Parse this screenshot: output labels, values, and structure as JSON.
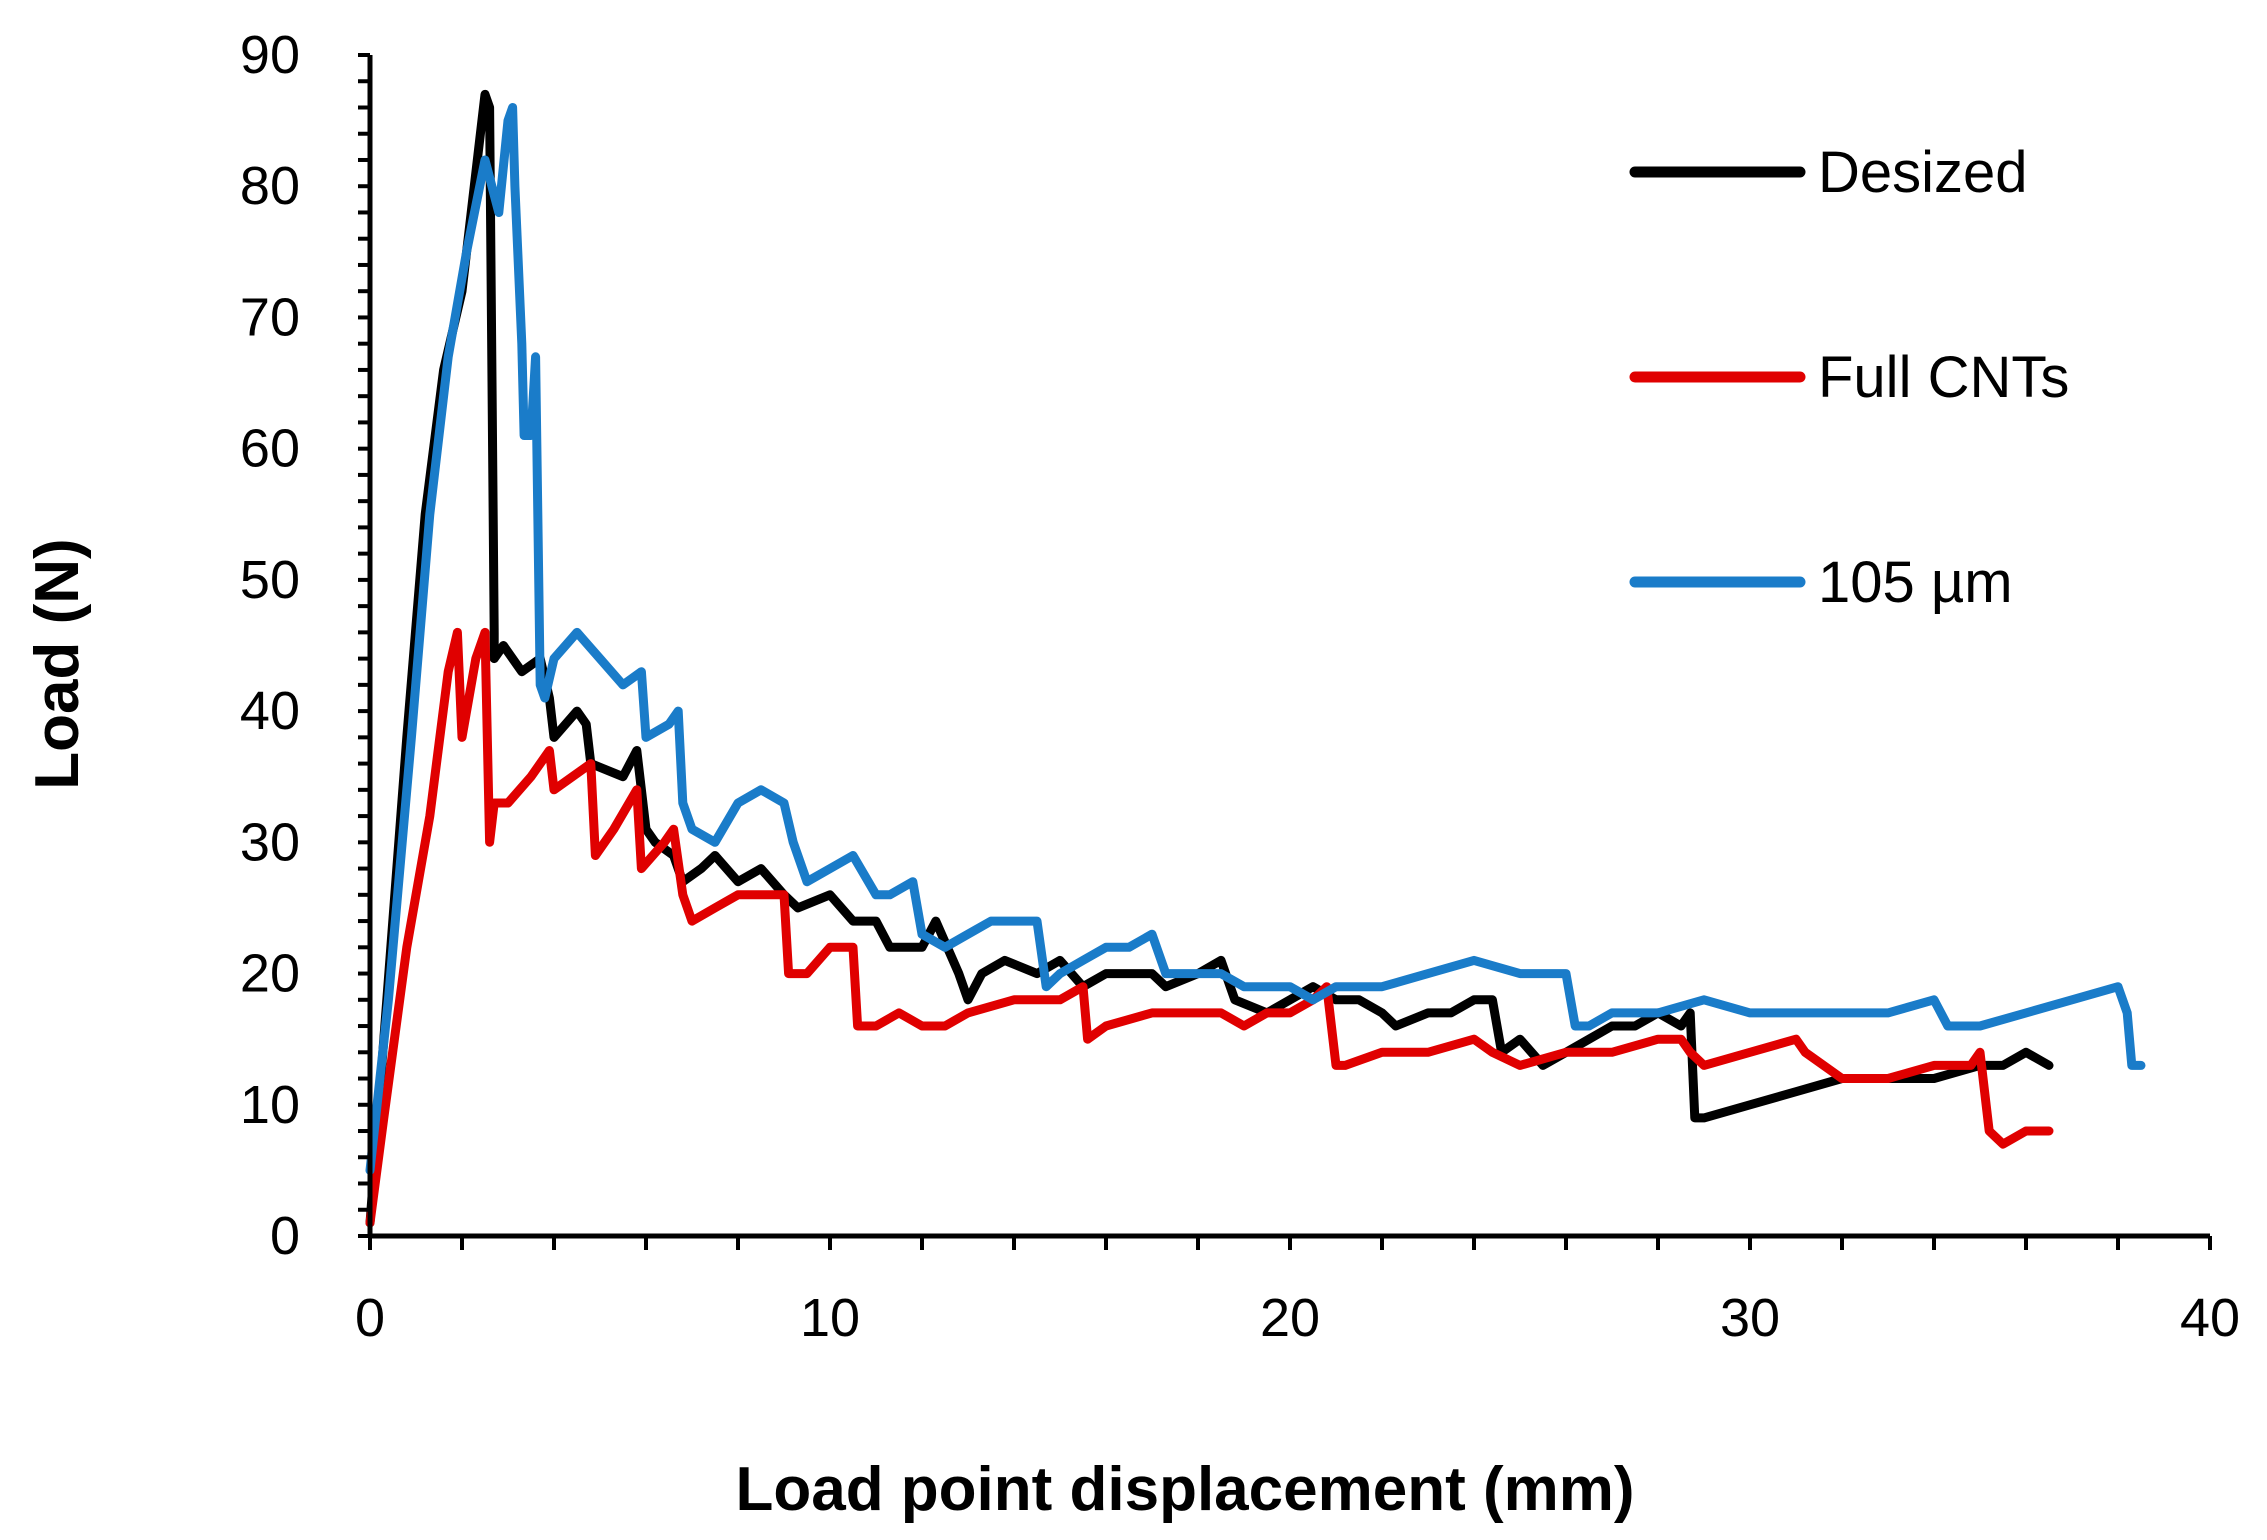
{
  "chart_data": {
    "type": "line",
    "title": "",
    "xlabel": "Load point displacement (mm)",
    "ylabel": "Load (N)",
    "xlim": [
      0,
      40
    ],
    "ylim": [
      0,
      90
    ],
    "xticks": [
      0,
      10,
      20,
      30,
      40
    ],
    "yticks": [
      0,
      10,
      20,
      30,
      40,
      50,
      60,
      70,
      80,
      90
    ],
    "grid": false,
    "legend_position": "top-right",
    "series": [
      {
        "name": "Desized",
        "color": "#000000",
        "x": [
          0,
          0.3,
          0.8,
          1.2,
          1.6,
          2.0,
          2.2,
          2.4,
          2.5,
          2.6,
          2.7,
          2.7,
          2.9,
          3.3,
          3.7,
          3.9,
          4.0,
          4.5,
          4.7,
          4.8,
          5.5,
          5.8,
          6.0,
          6.2,
          6.6,
          6.8,
          7.2,
          7.5,
          8.0,
          8.5,
          9.0,
          9.3,
          10.0,
          10.5,
          11.0,
          11.3,
          12.0,
          12.3,
          12.8,
          13.0,
          13.3,
          13.8,
          14.5,
          15.0,
          15.5,
          16.0,
          17.0,
          17.3,
          18.0,
          18.5,
          18.8,
          19.5,
          20.0,
          20.5,
          21.0,
          21.5,
          22.0,
          22.3,
          23.0,
          23.5,
          24.0,
          24.4,
          24.6,
          25.0,
          25.5,
          26.0,
          26.5,
          27.0,
          27.5,
          28.0,
          28.5,
          28.7,
          28.8,
          29.0,
          30.0,
          31.0,
          32.0,
          33.0,
          34.0,
          35.0,
          35.5,
          36.0,
          36.5
        ],
        "y": [
          1,
          15,
          38,
          55,
          66,
          72,
          78,
          84,
          87,
          86,
          46,
          44,
          45,
          43,
          44,
          41,
          38,
          40,
          39,
          36,
          35,
          37,
          31,
          30,
          29,
          27,
          28,
          29,
          27,
          28,
          26,
          25,
          26,
          24,
          24,
          22,
          22,
          24,
          20,
          18,
          20,
          21,
          20,
          21,
          19,
          20,
          20,
          19,
          20,
          21,
          18,
          17,
          18,
          19,
          18,
          18,
          17,
          16,
          17,
          17,
          18,
          18,
          14,
          15,
          13,
          14,
          15,
          16,
          16,
          17,
          16,
          17,
          9,
          9,
          10,
          11,
          12,
          12,
          12,
          13,
          13,
          14,
          13
        ]
      },
      {
        "name": "Full CNTs",
        "color": "#e00000",
        "x": [
          0,
          0.3,
          0.8,
          1.3,
          1.7,
          1.9,
          2.0,
          2.1,
          2.3,
          2.5,
          2.6,
          2.7,
          3.0,
          3.5,
          3.9,
          4.0,
          4.4,
          4.8,
          4.9,
          5.3,
          5.8,
          5.9,
          6.4,
          6.6,
          6.8,
          7.0,
          7.5,
          8.0,
          8.5,
          9.0,
          9.1,
          9.5,
          10.0,
          10.5,
          10.6,
          11.0,
          11.5,
          12.0,
          12.5,
          13.0,
          14.0,
          15.0,
          15.5,
          15.6,
          16.0,
          17.0,
          18.0,
          18.5,
          19.0,
          19.5,
          20.0,
          20.5,
          20.8,
          21.0,
          21.2,
          22.0,
          23.0,
          24.0,
          24.4,
          25.0,
          26.0,
          27.0,
          28.0,
          28.5,
          28.7,
          29.0,
          30.0,
          31.0,
          31.2,
          32.0,
          33.0,
          34.0,
          34.8,
          35.0,
          35.2,
          35.5,
          36.0,
          36.5
        ],
        "y": [
          1,
          9,
          22,
          32,
          43,
          46,
          38,
          40,
          44,
          46,
          30,
          33,
          33,
          35,
          37,
          34,
          35,
          36,
          29,
          31,
          34,
          28,
          30,
          31,
          26,
          24,
          25,
          26,
          26,
          26,
          20,
          20,
          22,
          22,
          16,
          16,
          17,
          16,
          16,
          17,
          18,
          18,
          19,
          15,
          16,
          17,
          17,
          17,
          16,
          17,
          17,
          18,
          19,
          13,
          13,
          14,
          14,
          15,
          14,
          13,
          14,
          14,
          15,
          15,
          14,
          13,
          14,
          15,
          14,
          12,
          12,
          13,
          13,
          14,
          8,
          7,
          8,
          8
        ]
      },
      {
        "name": "105 µm",
        "color": "#1a7cc9",
        "x": [
          0,
          0.4,
          0.9,
          1.3,
          1.7,
          2.1,
          2.5,
          2.8,
          3.0,
          3.1,
          3.15,
          3.3,
          3.35,
          3.5,
          3.6,
          3.7,
          3.8,
          4.0,
          4.5,
          5.0,
          5.5,
          5.9,
          6.0,
          6.5,
          6.7,
          6.8,
          7.0,
          7.5,
          8.0,
          8.5,
          9.0,
          9.2,
          9.5,
          10.0,
          10.5,
          11.0,
          11.3,
          11.8,
          12.0,
          12.5,
          13.0,
          13.5,
          14.0,
          14.5,
          14.7,
          15.0,
          15.5,
          16.0,
          16.5,
          17.0,
          17.3,
          18.0,
          18.5,
          19.0,
          19.5,
          20.0,
          20.5,
          21.0,
          22.0,
          23.0,
          24.0,
          25.0,
          26.0,
          26.2,
          26.5,
          27.0,
          28.0,
          29.0,
          30.0,
          31.0,
          32.0,
          33.0,
          34.0,
          34.3,
          35.0,
          36.0,
          37.0,
          38.0,
          38.2,
          38.3,
          38.5
        ],
        "y": [
          5,
          18,
          38,
          55,
          67,
          75,
          82,
          78,
          85,
          86,
          80,
          68,
          61,
          61,
          67,
          42,
          41,
          44,
          46,
          44,
          42,
          43,
          38,
          39,
          40,
          33,
          31,
          30,
          33,
          34,
          33,
          30,
          27,
          28,
          29,
          26,
          26,
          27,
          23,
          22,
          23,
          24,
          24,
          24,
          19,
          20,
          21,
          22,
          22,
          23,
          20,
          20,
          20,
          19,
          19,
          19,
          18,
          19,
          19,
          20,
          21,
          20,
          20,
          16,
          16,
          17,
          17,
          18,
          17,
          17,
          17,
          17,
          18,
          16,
          16,
          17,
          18,
          19,
          17,
          13,
          13
        ]
      }
    ]
  }
}
